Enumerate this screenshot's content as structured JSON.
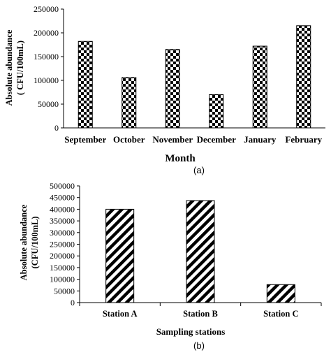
{
  "chart_data": [
    {
      "type": "bar",
      "panel_label": "(a)",
      "categories": [
        "September",
        "October",
        "November",
        "December",
        "January",
        "February"
      ],
      "values": [
        182000,
        106000,
        165000,
        70000,
        172000,
        215000
      ],
      "xlabel": "Month",
      "ylabel_line1": "Absolute abundance",
      "ylabel_line2": "( CFU/100mL)",
      "ylim": [
        0,
        250000
      ],
      "yticks": [
        "0",
        "50000",
        "100000",
        "150000",
        "200000",
        "250000"
      ],
      "pattern": "checkerboard",
      "grid": false,
      "legend": "none"
    },
    {
      "type": "bar",
      "panel_label": "(b)",
      "categories": [
        "Station A",
        "Station B",
        "Station C"
      ],
      "values": [
        400000,
        437000,
        77000
      ],
      "xlabel": "Sampling stations",
      "ylabel_line1": "Absolute abundance",
      "ylabel_line2": "(CFU/100mL)",
      "ylim": [
        0,
        500000
      ],
      "yticks": [
        "0",
        "50000",
        "100000",
        "150000",
        "200000",
        "250000",
        "300000",
        "350000",
        "400000",
        "450000",
        "500000"
      ],
      "pattern": "diagonal-stripes",
      "grid": false,
      "legend": "none"
    }
  ]
}
